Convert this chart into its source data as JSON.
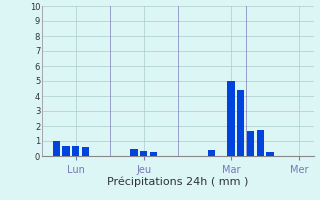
{
  "bar_data": [
    {
      "x": 2,
      "height": 1.0
    },
    {
      "x": 3,
      "height": 0.65
    },
    {
      "x": 4,
      "height": 0.7
    },
    {
      "x": 5,
      "height": 0.6
    },
    {
      "x": 10,
      "height": 0.5
    },
    {
      "x": 11,
      "height": 0.35
    },
    {
      "x": 12,
      "height": 0.3
    },
    {
      "x": 18,
      "height": 0.4
    },
    {
      "x": 20,
      "height": 5.0
    },
    {
      "x": 21,
      "height": 4.4
    },
    {
      "x": 22,
      "height": 1.7
    },
    {
      "x": 23,
      "height": 1.75
    },
    {
      "x": 24,
      "height": 0.3
    }
  ],
  "bar_color": "#0044dd",
  "background_color": "#dcf5f5",
  "grid_color": "#aacccc",
  "axis_color": "#7777bb",
  "xlabel": "Précipitations 24h ( mm )",
  "xlabel_fontsize": 8,
  "ylabel_ticks": [
    0,
    1,
    2,
    3,
    4,
    5,
    6,
    7,
    8,
    9,
    10
  ],
  "xtick_labels": [
    {
      "x": 4.0,
      "label": "Lun"
    },
    {
      "x": 11.0,
      "label": "Jeu"
    },
    {
      "x": 20.0,
      "label": "Mar"
    },
    {
      "x": 27.0,
      "label": "Mer"
    }
  ],
  "vlines": [
    0.5,
    7.5,
    14.5,
    21.5,
    28.5
  ],
  "xlim": [
    0.5,
    28.5
  ],
  "ylim": [
    0,
    10
  ],
  "bar_width": 0.75
}
